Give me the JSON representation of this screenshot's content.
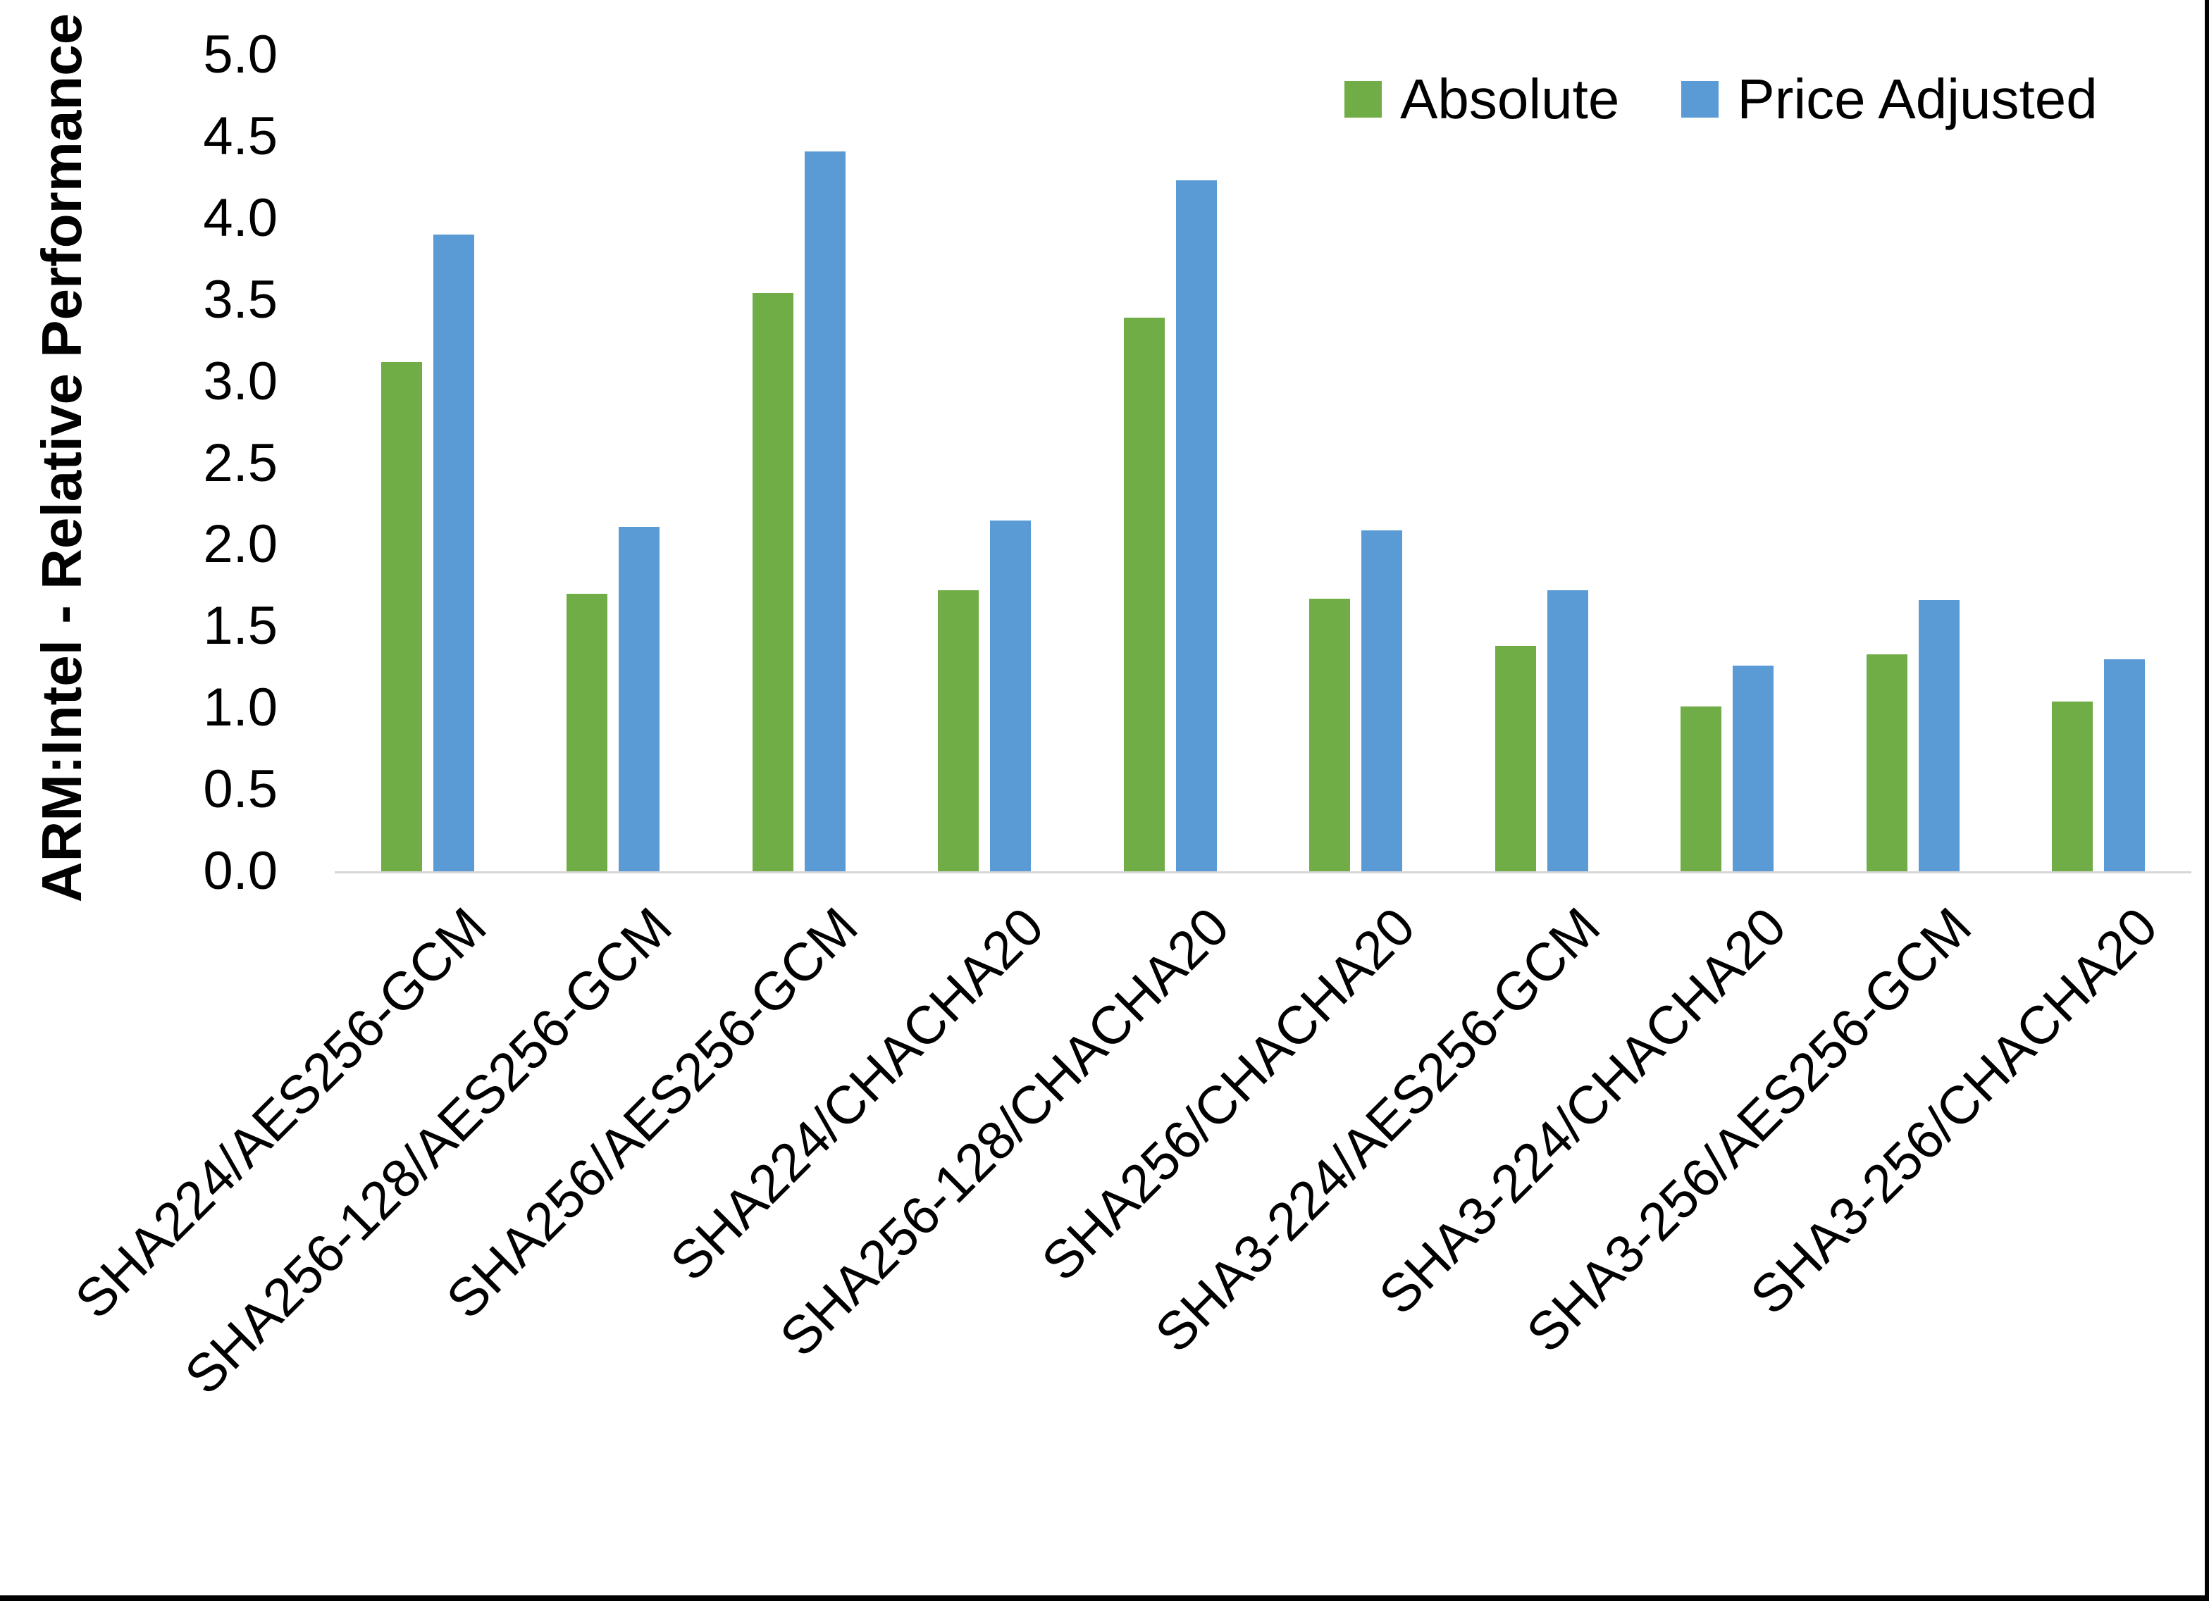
{
  "chart_data": {
    "type": "bar",
    "title": "",
    "xlabel": "",
    "ylabel": "ARM:Intel - Relative Performance",
    "ylim": [
      0,
      5
    ],
    "ytick_step": 0.5,
    "ytick_labels": [
      "0.0",
      "0.5",
      "1.0",
      "1.5",
      "2.0",
      "2.5",
      "3.0",
      "3.5",
      "4.0",
      "4.5",
      "5.0"
    ],
    "grid": false,
    "legend_position": "top-right-inside",
    "axis_line_color": "#D6D6D6",
    "categories": [
      "SHA224/AES256-GCM",
      "SHA256-128/AES256-GCM",
      "SHA256/AES256-GCM",
      "SHA224/CHACHA20",
      "SHA256-128/CHACHA20",
      "SHA256/CHACHA20",
      "SHA3-224/AES256-GCM",
      "SHA3-224/CHACHA20",
      "SHA3-256/AES256-GCM",
      "SHA3-256/CHACHA20"
    ],
    "series": [
      {
        "name": "Absolute",
        "color": "#70AD47",
        "values": [
          3.12,
          1.7,
          3.54,
          1.72,
          3.39,
          1.67,
          1.38,
          1.01,
          1.33,
          1.04
        ]
      },
      {
        "name": "Price Adjusted",
        "color": "#5B9BD5",
        "values": [
          3.9,
          2.11,
          4.41,
          2.15,
          4.23,
          2.09,
          1.72,
          1.26,
          1.66,
          1.3
        ]
      }
    ]
  }
}
